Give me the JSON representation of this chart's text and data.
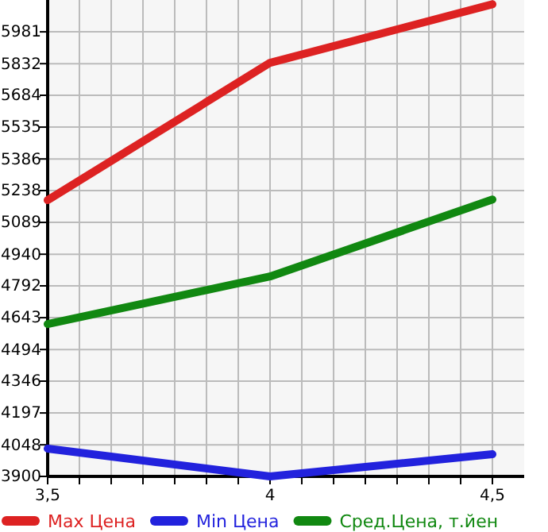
{
  "chart_data": {
    "type": "line",
    "x": [
      3.5,
      4,
      4.5
    ],
    "xlim": [
      3.5,
      4.5714
    ],
    "xticks": [
      {
        "value": 3.5,
        "label": "3,5"
      },
      {
        "value": 3.5714,
        "label": null
      },
      {
        "value": 3.6429,
        "label": null
      },
      {
        "value": 3.7143,
        "label": null
      },
      {
        "value": 3.7857,
        "label": null
      },
      {
        "value": 3.8571,
        "label": null
      },
      {
        "value": 3.9286,
        "label": null
      },
      {
        "value": 4,
        "label": "4"
      },
      {
        "value": 4.0714,
        "label": null
      },
      {
        "value": 4.1429,
        "label": null
      },
      {
        "value": 4.2143,
        "label": null
      },
      {
        "value": 4.2857,
        "label": null
      },
      {
        "value": 4.3571,
        "label": null
      },
      {
        "value": 4.4286,
        "label": null
      },
      {
        "value": 4.5,
        "label": "4,5"
      }
    ],
    "ylim": [
      3900,
      6130
    ],
    "yticks": [
      3900,
      4048,
      4197,
      4346,
      4494,
      4643,
      4792,
      4940,
      5089,
      5238,
      5386,
      5535,
      5684,
      5832,
      5981
    ],
    "grid": true,
    "legend": "bottom",
    "marker": "none",
    "line_style": "solid",
    "series": [
      {
        "name": "Max Цена",
        "color": "#dd2222",
        "values": [
          5193,
          5836,
          6110
        ]
      },
      {
        "name": "Min Цена",
        "color": "#2222dd",
        "values": [
          4030,
          3900,
          4004
        ]
      },
      {
        "name": "Сред.Цена, т.йен",
        "color": "#118811",
        "values": [
          4613,
          4836,
          5196
        ]
      }
    ]
  }
}
